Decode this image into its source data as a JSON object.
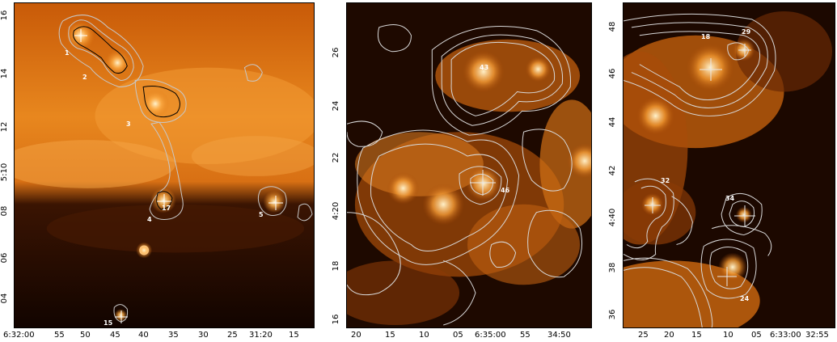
{
  "panels": [
    {
      "name": "left",
      "y_ticks": [
        "16",
        "14",
        "12",
        "5:10",
        "08",
        "06",
        "04"
      ],
      "x_ticks": [
        "6:32:00",
        "55",
        "50",
        "45",
        "40",
        "35",
        "30",
        "25",
        "31:20",
        "15"
      ],
      "sources": [
        "1",
        "2",
        "3",
        "4",
        "5",
        "15",
        "17"
      ]
    },
    {
      "name": "middle",
      "y_ticks": [
        "26",
        "24",
        "22",
        "4:20",
        "18",
        "16"
      ],
      "x_ticks": [
        "20",
        "15",
        "10",
        "05",
        "6:35:00",
        "55",
        "34:50"
      ],
      "sources": [
        "43",
        "46"
      ]
    },
    {
      "name": "right",
      "y_ticks": [
        "48",
        "46",
        "44",
        "42",
        "4:40",
        "38",
        "36"
      ],
      "x_ticks": [
        "25",
        "20",
        "15",
        "10",
        "05",
        "6:33:00",
        "32:55"
      ],
      "sources": [
        "18",
        "29",
        "32",
        "34",
        "24"
      ]
    }
  ],
  "colors": {
    "emission_bright": "#ffe6b0",
    "emission_mid": "#e07812",
    "emission_dark": "#1a0800",
    "contour_light": "#c8c8c8",
    "contour_dark": "#000000"
  }
}
